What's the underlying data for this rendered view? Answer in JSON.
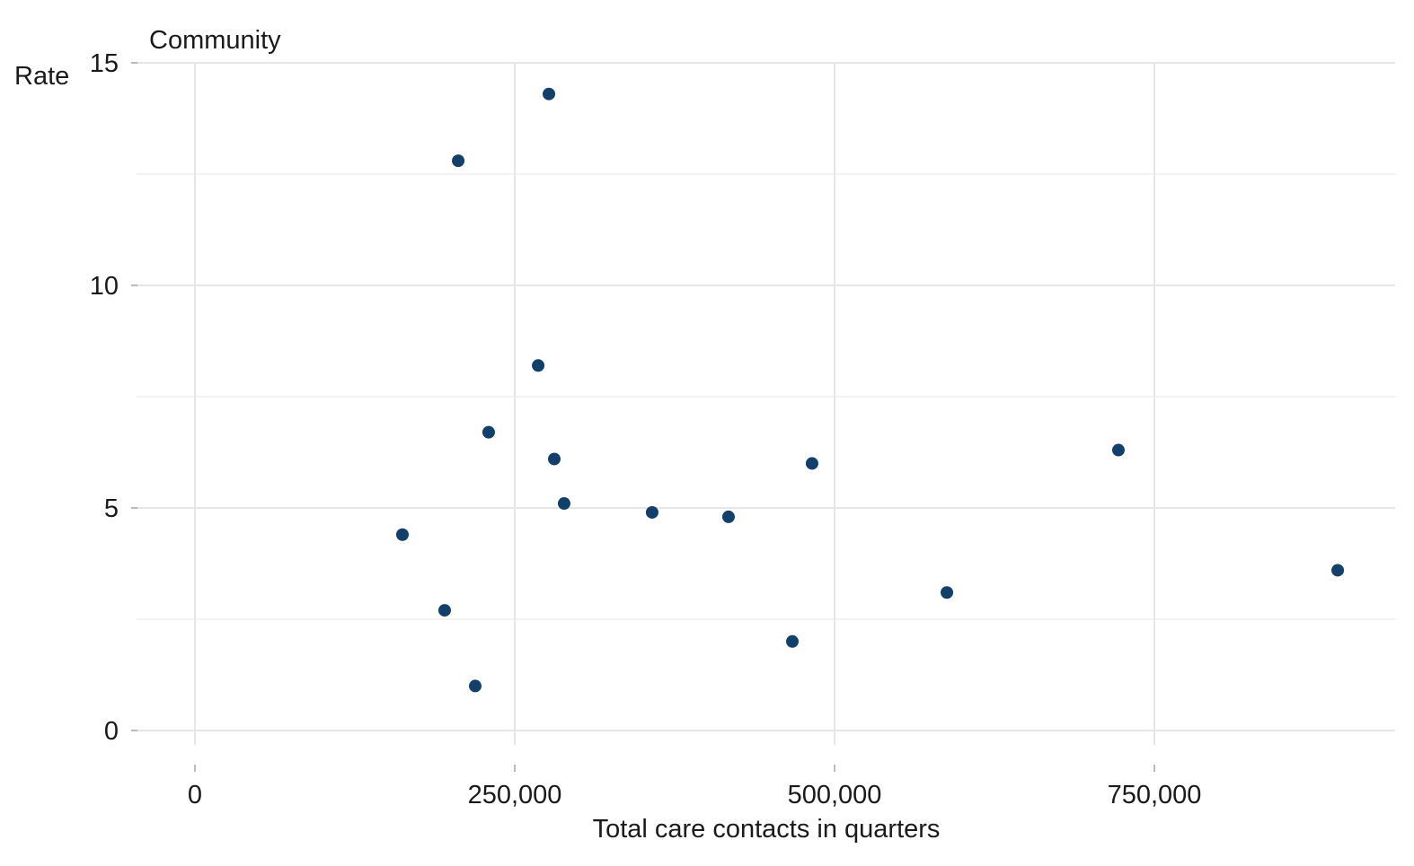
{
  "chart_data": {
    "type": "scatter",
    "title": "Community",
    "xlabel": "Total care contacts in quarters",
    "ylabel": "Rate",
    "xlim": [
      -47000,
      938000
    ],
    "ylim": [
      -0.7,
      15
    ],
    "x_ticks": [
      0,
      250000,
      500000,
      750000
    ],
    "x_tick_labels": [
      "0",
      "250,000",
      "500,000",
      "750,000"
    ],
    "y_ticks": [
      0,
      5,
      10,
      15
    ],
    "y_tick_labels": [
      "0",
      "5",
      "10",
      "15"
    ],
    "y_minor_ticks": [
      2.5,
      7.5,
      12.5
    ],
    "grid": true,
    "point_color": "#12406A",
    "points": [
      {
        "x": 276700,
        "y": 14.3
      },
      {
        "x": 205800,
        "y": 12.8
      },
      {
        "x": 268300,
        "y": 8.2
      },
      {
        "x": 229600,
        "y": 6.7
      },
      {
        "x": 280900,
        "y": 6.1
      },
      {
        "x": 288600,
        "y": 5.1
      },
      {
        "x": 357400,
        "y": 4.9
      },
      {
        "x": 417100,
        "y": 4.8
      },
      {
        "x": 482400,
        "y": 6.0
      },
      {
        "x": 721900,
        "y": 6.3
      },
      {
        "x": 162200,
        "y": 4.4
      },
      {
        "x": 195200,
        "y": 2.7
      },
      {
        "x": 219100,
        "y": 1.0
      },
      {
        "x": 467000,
        "y": 2.0
      },
      {
        "x": 587800,
        "y": 3.1
      },
      {
        "x": 893300,
        "y": 3.6
      }
    ]
  }
}
